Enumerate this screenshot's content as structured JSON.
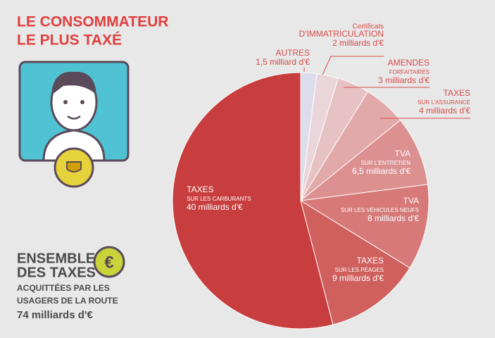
{
  "header": {
    "title_lines": [
      "LE CONSOMMATEUR",
      "LE PLUS TAXÉ"
    ]
  },
  "total": {
    "title_lines": [
      "ENSEMBLE",
      "DES TAXES"
    ],
    "symbol": "€",
    "subtitle_lines": [
      "ACQUITTÉES PAR LES",
      "USAGERS DE LA ROUTE"
    ],
    "value_label": "74 milliards d'€"
  },
  "chart_data": {
    "type": "pie",
    "categories": [
      "AUTRES",
      "Certificats",
      "AMENDES",
      "TAXES",
      "TVA",
      "TVA",
      "TAXES",
      "TAXES"
    ],
    "category_details": [
      null,
      "D'IMMATRICULATION",
      "FORFAITAIRES",
      "SUR L'ASSURANCE",
      "SUR L'ENTRETIEN",
      "SUR LES VÉHICULES NEUFS",
      "SUR LES PÉAGES",
      "SUR LES CARBURANTS"
    ],
    "values": [
      1.5,
      2,
      3,
      4,
      6.5,
      8,
      9,
      40
    ],
    "value_labels": [
      "1,5 milliard d'€",
      "2 milliards d'€",
      "3 milliards d'€",
      "4 milliards d'€",
      "6,5 milliards d'€",
      "8 milliards d'€",
      "9 milliards d'€",
      "40 milliards d'€"
    ],
    "colors": [
      "#dcdcec",
      "#ead6da",
      "#e6c2c4",
      "#e2a9a9",
      "#dc9090",
      "#d67978",
      "#cf605e",
      "#c83d3d"
    ]
  }
}
